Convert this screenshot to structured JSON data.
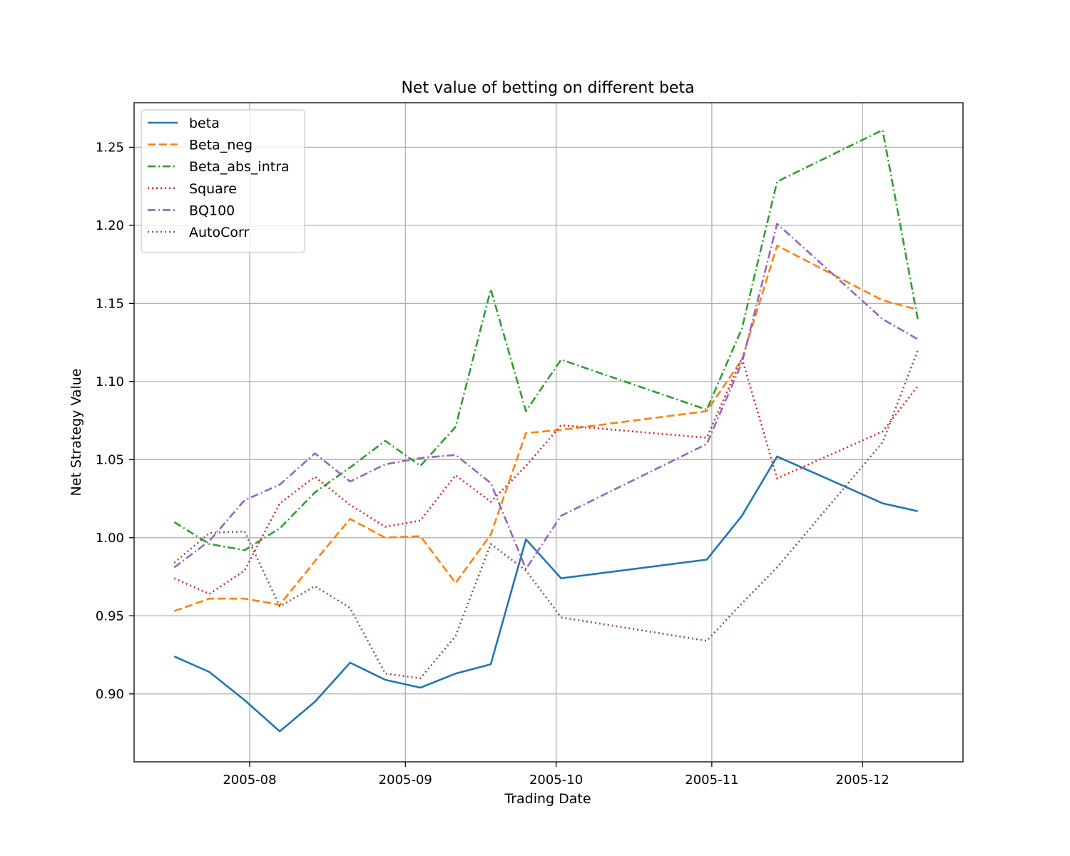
{
  "chart_data": {
    "type": "line",
    "title": "Net value of betting on different beta",
    "xlabel": "Trading Date",
    "ylabel": "Net Strategy Value",
    "xlim": [
      "2005-07-09",
      "2005-12-21"
    ],
    "ylim": [
      0.8565,
      1.2785
    ],
    "x_ticks": [
      "2005-08-01",
      "2005-09-01",
      "2005-10-01",
      "2005-11-01",
      "2005-12-01"
    ],
    "x_tick_labels": [
      "2005-08",
      "2005-09",
      "2005-10",
      "2005-11",
      "2005-12"
    ],
    "y_ticks": [
      0.9,
      0.95,
      1.0,
      1.05,
      1.1,
      1.15,
      1.2,
      1.25
    ],
    "y_tick_labels": [
      "0.90",
      "0.95",
      "1.00",
      "1.05",
      "1.10",
      "1.15",
      "1.20",
      "1.25"
    ],
    "grid": true,
    "legend_position": "top-left",
    "x": [
      "2005-07-17",
      "2005-07-24",
      "2005-07-31",
      "2005-08-07",
      "2005-08-14",
      "2005-08-21",
      "2005-08-28",
      "2005-09-04",
      "2005-09-11",
      "2005-09-18",
      "2005-09-25",
      "2005-10-02",
      "2005-10-31",
      "2005-11-07",
      "2005-11-14",
      "2005-12-05",
      "2005-12-12"
    ],
    "series": [
      {
        "name": "beta",
        "color": "#1f77b4",
        "dash": "solid",
        "values": [
          0.924,
          0.914,
          0.896,
          0.876,
          0.895,
          0.92,
          0.909,
          0.904,
          0.913,
          0.919,
          0.999,
          0.974,
          0.986,
          1.014,
          1.052,
          1.022,
          1.017
        ]
      },
      {
        "name": "Beta_neg",
        "color": "#ff7f0e",
        "dash": "dashed",
        "values": [
          0.953,
          0.961,
          0.961,
          0.957,
          0.985,
          1.012,
          1.0,
          1.001,
          0.971,
          1.002,
          1.067,
          1.069,
          1.081,
          1.114,
          1.187,
          1.152,
          1.146
        ]
      },
      {
        "name": "Beta_abs_intra",
        "color": "#2ca02c",
        "dash": "dashdot",
        "values": [
          1.01,
          0.996,
          0.992,
          1.006,
          1.029,
          1.045,
          1.062,
          1.046,
          1.071,
          1.159,
          1.081,
          1.114,
          1.082,
          1.134,
          1.228,
          1.261,
          1.14
        ]
      },
      {
        "name": "Square",
        "color": "#d62728",
        "dash": "dotted",
        "values": [
          0.974,
          0.964,
          0.979,
          1.022,
          1.039,
          1.021,
          1.007,
          1.011,
          1.04,
          1.023,
          1.046,
          1.072,
          1.064,
          1.115,
          1.038,
          1.068,
          1.097
        ]
      },
      {
        "name": "BQ100",
        "color": "#9467bd",
        "dash": "dashdot",
        "values": [
          0.981,
          0.998,
          1.024,
          1.034,
          1.054,
          1.036,
          1.047,
          1.051,
          1.053,
          1.035,
          0.98,
          1.014,
          1.06,
          1.112,
          1.201,
          1.14,
          1.127
        ]
      },
      {
        "name": "AutoCorr",
        "color": "#8c564b",
        "dash": "dotted",
        "values": [
          0.984,
          1.003,
          1.004,
          0.956,
          0.969,
          0.955,
          0.913,
          0.91,
          0.937,
          0.996,
          0.979,
          0.949,
          0.934,
          0.958,
          0.981,
          1.061,
          1.12
        ]
      }
    ]
  }
}
